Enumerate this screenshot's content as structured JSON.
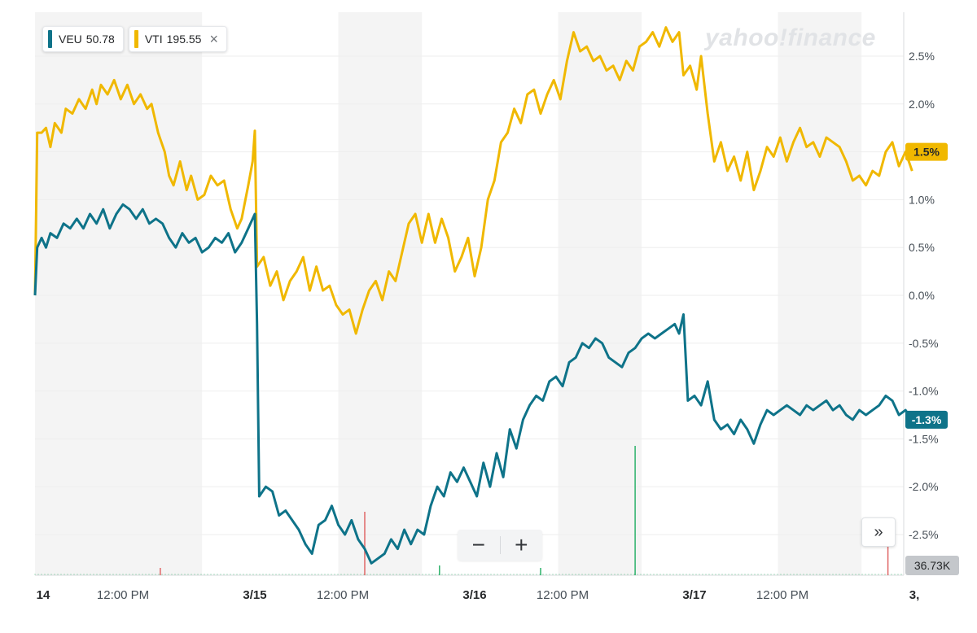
{
  "legend": [
    {
      "ticker": "VEU",
      "price": "50.78",
      "color": "#0e7389"
    },
    {
      "ticker": "VTI",
      "price": "195.55",
      "color": "#f0b800",
      "remove_icon": "close-icon"
    }
  ],
  "watermark": "yahoo!finance",
  "controls": {
    "zoom_out": "−",
    "zoom_in": "+",
    "scroll_right": "»"
  },
  "current_badges": {
    "VTI": "1.5%",
    "VEU": "-1.3%"
  },
  "volume_badge": "36.73K",
  "chart_data": {
    "type": "line",
    "x_tick_labels": [
      "14",
      "12:00 PM",
      "3/15",
      "12:00 PM",
      "3/16",
      "12:00 PM",
      "3/17",
      "12:00 PM",
      "3,"
    ],
    "y_tick_labels": [
      "2.5%",
      "2.0%",
      "1.5%",
      "1.0%",
      "0.5%",
      "0.0%",
      "-0.5%",
      "-1.0%",
      "-1.5%",
      "-2.0%",
      "-2.5%"
    ],
    "y_ticks": [
      2.5,
      2.0,
      1.5,
      1.0,
      0.5,
      0.0,
      -0.5,
      -1.0,
      -1.5,
      -2.0,
      -2.5
    ],
    "ylim": [
      -2.8,
      2.8
    ],
    "x_unit": "trading session (0 = 3/14 open, 1 = 3/15 open, ...)",
    "xlim": [
      0,
      4.0
    ],
    "grid": true,
    "legend_position": "top-left",
    "series": [
      {
        "name": "VTI",
        "color": "#f0b800",
        "points": [
          [
            0.0,
            0.0
          ],
          [
            0.01,
            1.7
          ],
          [
            0.03,
            1.7
          ],
          [
            0.05,
            1.75
          ],
          [
            0.07,
            1.55
          ],
          [
            0.09,
            1.8
          ],
          [
            0.12,
            1.7
          ],
          [
            0.14,
            1.95
          ],
          [
            0.17,
            1.9
          ],
          [
            0.2,
            2.05
          ],
          [
            0.23,
            1.95
          ],
          [
            0.26,
            2.15
          ],
          [
            0.28,
            2.0
          ],
          [
            0.3,
            2.2
          ],
          [
            0.33,
            2.1
          ],
          [
            0.36,
            2.25
          ],
          [
            0.39,
            2.05
          ],
          [
            0.42,
            2.2
          ],
          [
            0.45,
            2.0
          ],
          [
            0.48,
            2.1
          ],
          [
            0.51,
            1.95
          ],
          [
            0.53,
            2.0
          ],
          [
            0.56,
            1.7
          ],
          [
            0.59,
            1.5
          ],
          [
            0.61,
            1.25
          ],
          [
            0.63,
            1.15
          ],
          [
            0.66,
            1.4
          ],
          [
            0.69,
            1.1
          ],
          [
            0.71,
            1.25
          ],
          [
            0.74,
            1.0
          ],
          [
            0.77,
            1.05
          ],
          [
            0.8,
            1.25
          ],
          [
            0.83,
            1.15
          ],
          [
            0.86,
            1.2
          ],
          [
            0.89,
            0.9
          ],
          [
            0.92,
            0.7
          ],
          [
            0.94,
            0.8
          ],
          [
            0.97,
            1.15
          ],
          [
            0.99,
            1.4
          ],
          [
            1.0,
            1.72
          ],
          [
            1.01,
            0.3
          ],
          [
            1.04,
            0.4
          ],
          [
            1.07,
            0.1
          ],
          [
            1.1,
            0.25
          ],
          [
            1.13,
            -0.05
          ],
          [
            1.16,
            0.15
          ],
          [
            1.19,
            0.25
          ],
          [
            1.22,
            0.4
          ],
          [
            1.25,
            0.05
          ],
          [
            1.28,
            0.3
          ],
          [
            1.31,
            0.05
          ],
          [
            1.34,
            0.1
          ],
          [
            1.37,
            -0.1
          ],
          [
            1.4,
            -0.2
          ],
          [
            1.43,
            -0.15
          ],
          [
            1.46,
            -0.4
          ],
          [
            1.49,
            -0.15
          ],
          [
            1.52,
            0.05
          ],
          [
            1.55,
            0.15
          ],
          [
            1.58,
            -0.05
          ],
          [
            1.61,
            0.25
          ],
          [
            1.64,
            0.15
          ],
          [
            1.67,
            0.45
          ],
          [
            1.7,
            0.75
          ],
          [
            1.73,
            0.85
          ],
          [
            1.76,
            0.55
          ],
          [
            1.79,
            0.85
          ],
          [
            1.82,
            0.55
          ],
          [
            1.85,
            0.8
          ],
          [
            1.88,
            0.6
          ],
          [
            1.91,
            0.25
          ],
          [
            1.94,
            0.4
          ],
          [
            1.97,
            0.6
          ],
          [
            2.0,
            0.2
          ],
          [
            2.03,
            0.5
          ],
          [
            2.06,
            1.0
          ],
          [
            2.09,
            1.2
          ],
          [
            2.12,
            1.6
          ],
          [
            2.15,
            1.7
          ],
          [
            2.18,
            1.95
          ],
          [
            2.21,
            1.8
          ],
          [
            2.24,
            2.1
          ],
          [
            2.27,
            2.15
          ],
          [
            2.3,
            1.9
          ],
          [
            2.33,
            2.1
          ],
          [
            2.36,
            2.25
          ],
          [
            2.39,
            2.05
          ],
          [
            2.42,
            2.45
          ],
          [
            2.45,
            2.75
          ],
          [
            2.48,
            2.55
          ],
          [
            2.51,
            2.6
          ],
          [
            2.54,
            2.45
          ],
          [
            2.57,
            2.5
          ],
          [
            2.6,
            2.35
          ],
          [
            2.63,
            2.4
          ],
          [
            2.66,
            2.25
          ],
          [
            2.69,
            2.45
          ],
          [
            2.72,
            2.35
          ],
          [
            2.75,
            2.6
          ],
          [
            2.78,
            2.65
          ],
          [
            2.81,
            2.75
          ],
          [
            2.84,
            2.6
          ],
          [
            2.87,
            2.8
          ],
          [
            2.9,
            2.65
          ],
          [
            2.93,
            2.75
          ],
          [
            2.95,
            2.3
          ],
          [
            2.98,
            2.4
          ],
          [
            3.01,
            2.15
          ],
          [
            3.03,
            2.5
          ],
          [
            3.06,
            1.9
          ],
          [
            3.09,
            1.4
          ],
          [
            3.12,
            1.6
          ],
          [
            3.15,
            1.3
          ],
          [
            3.18,
            1.45
          ],
          [
            3.21,
            1.2
          ],
          [
            3.24,
            1.5
          ],
          [
            3.27,
            1.1
          ],
          [
            3.3,
            1.3
          ],
          [
            3.33,
            1.55
          ],
          [
            3.36,
            1.45
          ],
          [
            3.39,
            1.65
          ],
          [
            3.42,
            1.4
          ],
          [
            3.45,
            1.6
          ],
          [
            3.48,
            1.75
          ],
          [
            3.51,
            1.55
          ],
          [
            3.54,
            1.6
          ],
          [
            3.57,
            1.45
          ],
          [
            3.6,
            1.65
          ],
          [
            3.63,
            1.6
          ],
          [
            3.66,
            1.55
          ],
          [
            3.69,
            1.4
          ],
          [
            3.72,
            1.2
          ],
          [
            3.75,
            1.25
          ],
          [
            3.78,
            1.15
          ],
          [
            3.81,
            1.3
          ],
          [
            3.84,
            1.25
          ],
          [
            3.87,
            1.5
          ],
          [
            3.9,
            1.6
          ],
          [
            3.93,
            1.35
          ],
          [
            3.96,
            1.5
          ],
          [
            3.99,
            1.3
          ]
        ]
      },
      {
        "name": "VEU",
        "color": "#0e7389",
        "points": [
          [
            0.0,
            0.0
          ],
          [
            0.01,
            0.5
          ],
          [
            0.03,
            0.6
          ],
          [
            0.05,
            0.5
          ],
          [
            0.07,
            0.65
          ],
          [
            0.1,
            0.6
          ],
          [
            0.13,
            0.75
          ],
          [
            0.16,
            0.7
          ],
          [
            0.19,
            0.8
          ],
          [
            0.22,
            0.7
          ],
          [
            0.25,
            0.85
          ],
          [
            0.28,
            0.75
          ],
          [
            0.31,
            0.9
          ],
          [
            0.34,
            0.7
          ],
          [
            0.37,
            0.85
          ],
          [
            0.4,
            0.95
          ],
          [
            0.43,
            0.9
          ],
          [
            0.46,
            0.8
          ],
          [
            0.49,
            0.9
          ],
          [
            0.52,
            0.75
          ],
          [
            0.55,
            0.8
          ],
          [
            0.58,
            0.75
          ],
          [
            0.61,
            0.6
          ],
          [
            0.64,
            0.5
          ],
          [
            0.67,
            0.65
          ],
          [
            0.7,
            0.55
          ],
          [
            0.73,
            0.6
          ],
          [
            0.76,
            0.45
          ],
          [
            0.79,
            0.5
          ],
          [
            0.82,
            0.6
          ],
          [
            0.85,
            0.55
          ],
          [
            0.88,
            0.65
          ],
          [
            0.91,
            0.45
          ],
          [
            0.94,
            0.55
          ],
          [
            0.97,
            0.7
          ],
          [
            1.0,
            0.85
          ],
          [
            1.01,
            -0.3
          ],
          [
            1.02,
            -2.1
          ],
          [
            1.05,
            -2.0
          ],
          [
            1.08,
            -2.05
          ],
          [
            1.11,
            -2.3
          ],
          [
            1.14,
            -2.25
          ],
          [
            1.17,
            -2.35
          ],
          [
            1.2,
            -2.45
          ],
          [
            1.23,
            -2.6
          ],
          [
            1.26,
            -2.7
          ],
          [
            1.29,
            -2.4
          ],
          [
            1.32,
            -2.35
          ],
          [
            1.35,
            -2.2
          ],
          [
            1.38,
            -2.4
          ],
          [
            1.41,
            -2.5
          ],
          [
            1.44,
            -2.35
          ],
          [
            1.47,
            -2.55
          ],
          [
            1.5,
            -2.65
          ],
          [
            1.53,
            -2.8
          ],
          [
            1.56,
            -2.75
          ],
          [
            1.59,
            -2.7
          ],
          [
            1.62,
            -2.55
          ],
          [
            1.65,
            -2.65
          ],
          [
            1.68,
            -2.45
          ],
          [
            1.71,
            -2.6
          ],
          [
            1.74,
            -2.45
          ],
          [
            1.77,
            -2.5
          ],
          [
            1.8,
            -2.2
          ],
          [
            1.83,
            -2.0
          ],
          [
            1.86,
            -2.1
          ],
          [
            1.89,
            -1.85
          ],
          [
            1.92,
            -1.95
          ],
          [
            1.95,
            -1.8
          ],
          [
            1.98,
            -1.95
          ],
          [
            2.01,
            -2.1
          ],
          [
            2.04,
            -1.75
          ],
          [
            2.07,
            -2.0
          ],
          [
            2.1,
            -1.65
          ],
          [
            2.13,
            -1.9
          ],
          [
            2.16,
            -1.4
          ],
          [
            2.19,
            -1.6
          ],
          [
            2.22,
            -1.3
          ],
          [
            2.25,
            -1.15
          ],
          [
            2.28,
            -1.05
          ],
          [
            2.31,
            -1.1
          ],
          [
            2.34,
            -0.9
          ],
          [
            2.37,
            -0.85
          ],
          [
            2.4,
            -0.95
          ],
          [
            2.43,
            -0.7
          ],
          [
            2.46,
            -0.65
          ],
          [
            2.49,
            -0.5
          ],
          [
            2.52,
            -0.55
          ],
          [
            2.55,
            -0.45
          ],
          [
            2.58,
            -0.5
          ],
          [
            2.61,
            -0.65
          ],
          [
            2.64,
            -0.7
          ],
          [
            2.67,
            -0.75
          ],
          [
            2.7,
            -0.6
          ],
          [
            2.73,
            -0.55
          ],
          [
            2.76,
            -0.45
          ],
          [
            2.79,
            -0.4
          ],
          [
            2.82,
            -0.45
          ],
          [
            2.85,
            -0.4
          ],
          [
            2.88,
            -0.35
          ],
          [
            2.91,
            -0.3
          ],
          [
            2.93,
            -0.4
          ],
          [
            2.95,
            -0.2
          ],
          [
            2.97,
            -1.1
          ],
          [
            3.0,
            -1.05
          ],
          [
            3.03,
            -1.15
          ],
          [
            3.06,
            -0.9
          ],
          [
            3.09,
            -1.3
          ],
          [
            3.12,
            -1.4
          ],
          [
            3.15,
            -1.35
          ],
          [
            3.18,
            -1.45
          ],
          [
            3.21,
            -1.3
          ],
          [
            3.24,
            -1.4
          ],
          [
            3.27,
            -1.55
          ],
          [
            3.3,
            -1.35
          ],
          [
            3.33,
            -1.2
          ],
          [
            3.36,
            -1.25
          ],
          [
            3.39,
            -1.2
          ],
          [
            3.42,
            -1.15
          ],
          [
            3.45,
            -1.2
          ],
          [
            3.48,
            -1.25
          ],
          [
            3.51,
            -1.15
          ],
          [
            3.54,
            -1.2
          ],
          [
            3.57,
            -1.15
          ],
          [
            3.6,
            -1.1
          ],
          [
            3.63,
            -1.2
          ],
          [
            3.66,
            -1.15
          ],
          [
            3.69,
            -1.25
          ],
          [
            3.72,
            -1.3
          ],
          [
            3.75,
            -1.2
          ],
          [
            3.78,
            -1.25
          ],
          [
            3.81,
            -1.2
          ],
          [
            3.84,
            -1.15
          ],
          [
            3.87,
            -1.05
          ],
          [
            3.9,
            -1.1
          ],
          [
            3.93,
            -1.25
          ],
          [
            3.96,
            -1.2
          ],
          [
            3.99,
            -1.3
          ]
        ]
      }
    ],
    "volume_spikes": [
      {
        "x": 0.57,
        "height": 0.03,
        "color": "#e06666"
      },
      {
        "x": 1.5,
        "height": 0.26,
        "color": "#e06666"
      },
      {
        "x": 2.73,
        "height": 0.53,
        "color": "#2db26b"
      },
      {
        "x": 3.88,
        "height": 0.22,
        "color": "#e06666"
      },
      {
        "x": 1.84,
        "height": 0.04,
        "color": "#2db26b"
      },
      {
        "x": 2.3,
        "height": 0.03,
        "color": "#2db26b"
      }
    ]
  }
}
